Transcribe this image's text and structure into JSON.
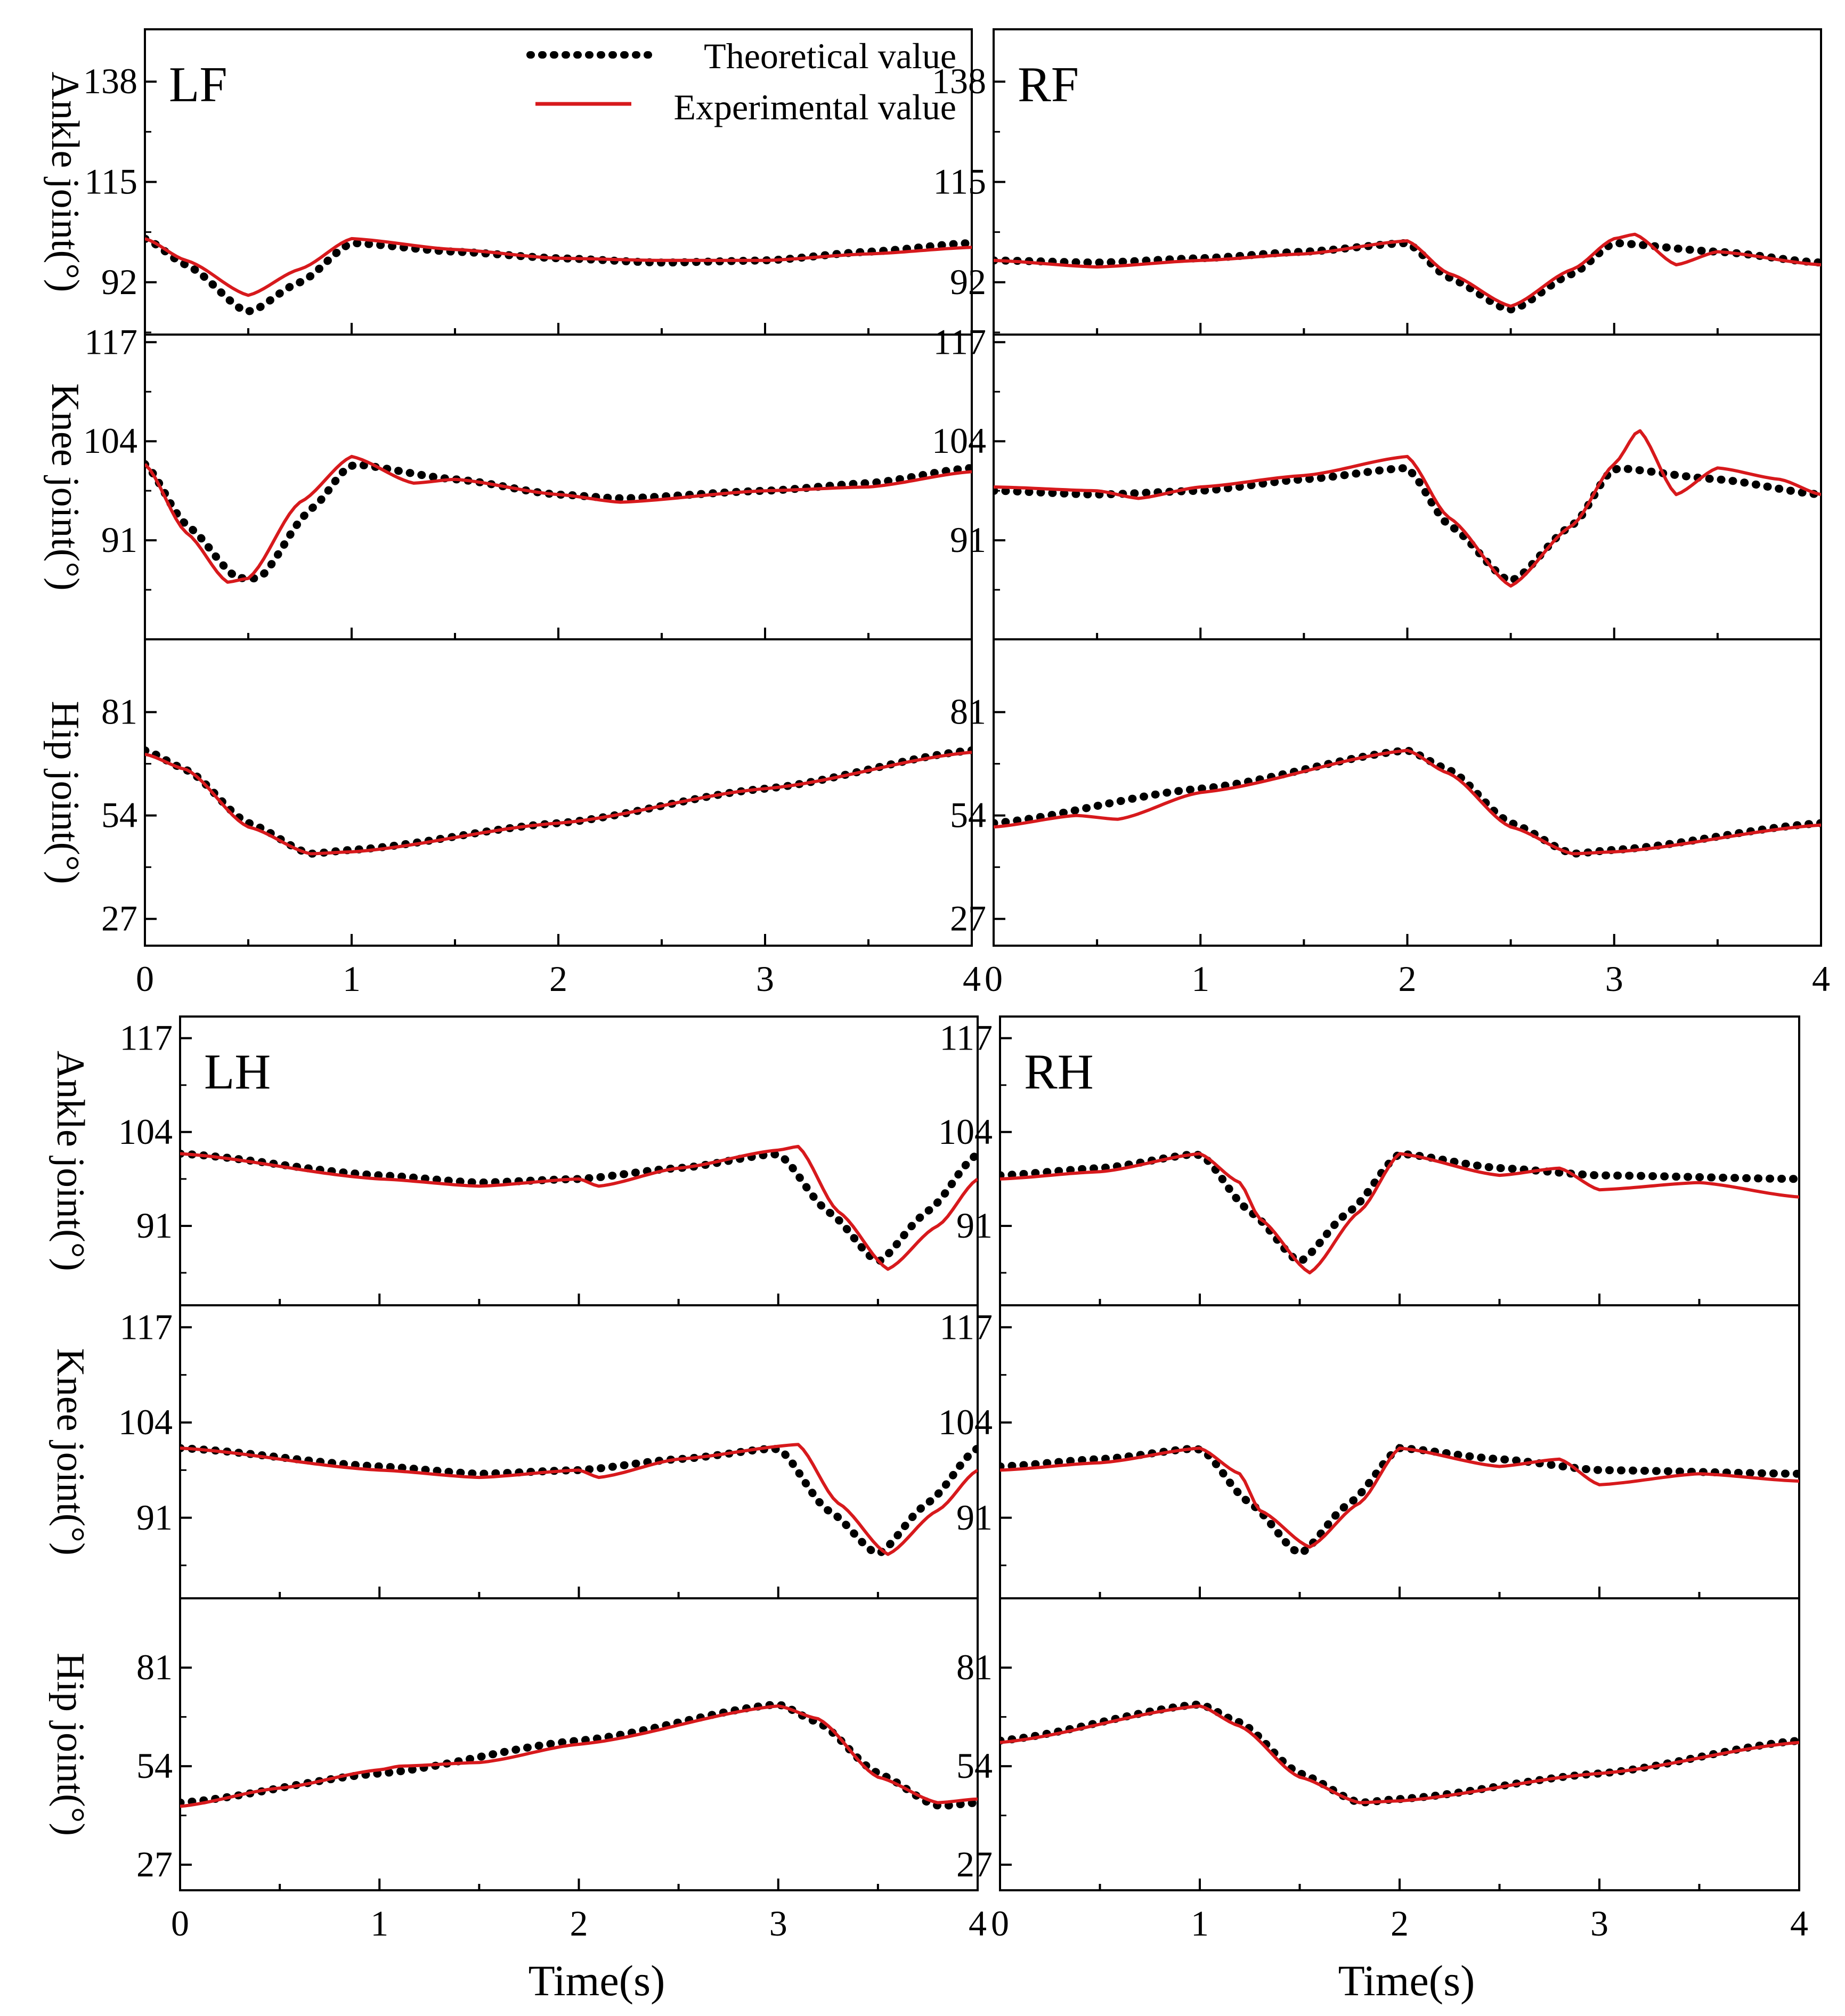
{
  "figure": {
    "theoretical_color": "#000000",
    "experimental_color": "#d7191c",
    "legend": {
      "theoretical": "Theoretical value",
      "experimental": "Experimental value"
    },
    "xlabel": "Time(s)"
  },
  "chart_data": [
    {
      "type": "line",
      "panel": "LF",
      "row": "ankle",
      "title": "LF",
      "ylabel": "Ankle joint(°)",
      "yticks": [
        92,
        115,
        138
      ],
      "ylim": [
        80,
        150
      ],
      "xlim": [
        0,
        4
      ],
      "xticks": [
        0,
        1,
        2,
        3,
        4
      ],
      "series": [
        {
          "name": "Theoretical value",
          "x": [
            0,
            0.2,
            0.5,
            0.75,
            1.0,
            1.5,
            2.0,
            2.5,
            3.0,
            3.5,
            4.0
          ],
          "values": [
            102,
            96,
            85,
            92,
            101,
            99,
            97.5,
            96.5,
            97,
            99,
            101
          ]
        },
        {
          "name": "Experimental value",
          "x": [
            0,
            0.2,
            0.5,
            0.75,
            1.0,
            1.5,
            2.0,
            2.5,
            3.0,
            3.5,
            4.0
          ],
          "values": [
            102,
            97,
            89,
            95,
            102,
            99.5,
            97.5,
            97,
            97,
            98.5,
            100
          ]
        }
      ]
    },
    {
      "type": "line",
      "panel": "LF",
      "row": "knee",
      "ylabel": "Knee joint(°)",
      "yticks": [
        91,
        104,
        117
      ],
      "ylim": [
        78,
        118
      ],
      "xlim": [
        0,
        4
      ],
      "xticks": [
        0,
        1,
        2,
        3,
        4
      ],
      "series": [
        {
          "name": "Theoretical value",
          "x": [
            0,
            0.2,
            0.45,
            0.55,
            0.8,
            1.0,
            1.5,
            2.0,
            2.3,
            3.0,
            3.5,
            4.0
          ],
          "values": [
            101,
            93,
            86,
            86,
            95,
            101,
            99,
            97,
            96.5,
            97.5,
            98.5,
            100.5
          ]
        },
        {
          "name": "Experimental value",
          "x": [
            0,
            0.2,
            0.4,
            0.5,
            0.75,
            1.0,
            1.3,
            1.5,
            2.0,
            2.3,
            3.0,
            3.5,
            4.0
          ],
          "values": [
            101,
            92,
            85.5,
            86,
            96,
            102,
            98.5,
            99,
            97,
            96,
            97.5,
            98,
            100
          ]
        }
      ]
    },
    {
      "type": "line",
      "panel": "LF",
      "row": "hip",
      "ylabel": "Hip joint(°)",
      "yticks": [
        27,
        54,
        81
      ],
      "ylim": [
        20,
        100
      ],
      "xlim": [
        0,
        4
      ],
      "xticks": [
        0,
        1,
        2,
        3,
        4
      ],
      "series": [
        {
          "name": "Theoretical value",
          "x": [
            0,
            0.2,
            0.5,
            0.8,
            1.0,
            2.0,
            3.0,
            4.0
          ],
          "values": [
            71,
            66,
            52,
            44,
            45,
            52,
            61,
            71
          ]
        },
        {
          "name": "Experimental value",
          "x": [
            0,
            0.2,
            0.5,
            0.8,
            1.0,
            2.0,
            3.0,
            4.0
          ],
          "values": [
            70,
            66,
            51,
            44,
            44.5,
            52,
            61,
            70.5
          ]
        }
      ]
    },
    {
      "type": "line",
      "panel": "RF",
      "row": "ankle",
      "title": "RF",
      "ylabel": "",
      "yticks": [
        92,
        115,
        138
      ],
      "ylim": [
        80,
        150
      ],
      "xlim": [
        0,
        4
      ],
      "xticks": [
        0,
        1,
        2,
        3,
        4
      ],
      "series": [
        {
          "name": "Theoretical value",
          "x": [
            0,
            0.5,
            1.0,
            1.5,
            2.0,
            2.2,
            2.5,
            2.8,
            3.0,
            3.5,
            4.0
          ],
          "values": [
            97,
            96.5,
            97.5,
            99,
            101,
            93,
            85.5,
            94,
            101,
            99,
            96.5
          ]
        },
        {
          "name": "Experimental value",
          "x": [
            0,
            0.5,
            1.0,
            1.5,
            2.0,
            2.2,
            2.5,
            2.8,
            3.0,
            3.1,
            3.3,
            3.5,
            4.0
          ],
          "values": [
            97,
            95.5,
            97,
            98.5,
            101.5,
            94,
            86.5,
            95,
            102,
            103,
            96,
            99,
            96
          ]
        }
      ]
    },
    {
      "type": "line",
      "panel": "RF",
      "row": "knee",
      "ylabel": "",
      "yticks": [
        91,
        104,
        117
      ],
      "ylim": [
        78,
        118
      ],
      "xlim": [
        0,
        4
      ],
      "xticks": [
        0,
        1,
        2,
        3,
        4
      ],
      "series": [
        {
          "name": "Theoretical value",
          "x": [
            0,
            0.5,
            1.0,
            1.5,
            2.0,
            2.2,
            2.5,
            2.8,
            3.0,
            3.5,
            4.0
          ],
          "values": [
            97.5,
            97,
            97.5,
            99,
            100.5,
            93,
            85.5,
            93,
            100.5,
            99,
            97
          ]
        },
        {
          "name": "Experimental value",
          "x": [
            0,
            0.5,
            0.7,
            1.0,
            1.5,
            2.0,
            2.2,
            2.5,
            2.8,
            3.0,
            3.12,
            3.3,
            3.5,
            3.8,
            4.0
          ],
          "values": [
            98,
            97.5,
            96.5,
            98,
            99.5,
            102,
            94,
            85,
            93,
            101,
            105.5,
            97,
            100.5,
            99,
            97
          ]
        }
      ]
    },
    {
      "type": "line",
      "panel": "RF",
      "row": "hip",
      "ylabel": "",
      "yticks": [
        27,
        54,
        81
      ],
      "ylim": [
        20,
        100
      ],
      "xlim": [
        0,
        4
      ],
      "xticks": [
        0,
        1,
        2,
        3,
        4
      ],
      "series": [
        {
          "name": "Theoretical value",
          "x": [
            0,
            1.0,
            2.0,
            2.2,
            2.5,
            2.8,
            3.0,
            4.0
          ],
          "values": [
            52,
            61,
            71,
            66,
            52,
            44,
            45,
            52
          ]
        },
        {
          "name": "Experimental value",
          "x": [
            0,
            0.4,
            0.6,
            1.0,
            2.0,
            2.2,
            2.5,
            2.8,
            3.0,
            4.0
          ],
          "values": [
            51,
            54,
            53,
            60,
            71,
            65,
            51,
            44,
            44.5,
            51.5
          ]
        }
      ]
    },
    {
      "type": "line",
      "panel": "LH",
      "row": "ankle",
      "title": "LH",
      "ylabel": "Ankle joint(°)",
      "yticks": [
        91,
        104,
        117
      ],
      "ylim": [
        80,
        120
      ],
      "xlim": [
        0,
        4
      ],
      "xticks": [
        0,
        1,
        2,
        3,
        4
      ],
      "series": [
        {
          "name": "Theoretical value",
          "x": [
            0,
            1.0,
            1.5,
            2.0,
            2.5,
            3.0,
            3.25,
            3.5,
            3.75,
            4.0
          ],
          "values": [
            101,
            98,
            97,
            97.5,
            99,
            101,
            93,
            86,
            93,
            101
          ]
        },
        {
          "name": "Experimental value",
          "x": [
            0,
            1.0,
            1.5,
            2.0,
            2.1,
            2.5,
            3.0,
            3.1,
            3.3,
            3.55,
            3.8,
            4.0
          ],
          "values": [
            101,
            97.5,
            96.5,
            97.5,
            96.5,
            99,
            101.5,
            102,
            93,
            85,
            91,
            97.5
          ]
        }
      ]
    },
    {
      "type": "line",
      "panel": "LH",
      "row": "knee",
      "ylabel": "Knee joint(°)",
      "yticks": [
        91,
        104,
        117
      ],
      "ylim": [
        80,
        120
      ],
      "xlim": [
        0,
        4
      ],
      "xticks": [
        0,
        1,
        2,
        3,
        4
      ],
      "series": [
        {
          "name": "Theoretical value",
          "x": [
            0,
            1.0,
            1.5,
            2.0,
            2.5,
            3.0,
            3.25,
            3.5,
            3.75,
            4.0
          ],
          "values": [
            100.5,
            98,
            97,
            97.5,
            99,
            100.5,
            92,
            86,
            93,
            100.5
          ]
        },
        {
          "name": "Experimental value",
          "x": [
            0,
            1.0,
            1.5,
            2.0,
            2.1,
            2.5,
            3.1,
            3.3,
            3.55,
            3.8,
            4.0
          ],
          "values": [
            100.5,
            97.5,
            96.5,
            97.5,
            96.5,
            99,
            101,
            93,
            86,
            92,
            97.5
          ]
        }
      ]
    },
    {
      "type": "line",
      "panel": "LH",
      "row": "hip",
      "ylabel": "Hip joint(°)",
      "yticks": [
        27,
        54,
        81
      ],
      "ylim": [
        20,
        100
      ],
      "xlim": [
        0,
        4
      ],
      "xticks": [
        0,
        1,
        2,
        3,
        4
      ],
      "series": [
        {
          "name": "Theoretical value",
          "x": [
            0,
            1.0,
            2.0,
            3.0,
            3.2,
            3.5,
            3.8,
            4.0
          ],
          "values": [
            44,
            52,
            61,
            71,
            66,
            52,
            43,
            44
          ]
        },
        {
          "name": "Experimental value",
          "x": [
            0,
            0.5,
            1.0,
            1.1,
            1.5,
            2.0,
            3.0,
            3.2,
            3.5,
            3.8,
            4.0
          ],
          "values": [
            43,
            48,
            53,
            54,
            55,
            60,
            70.5,
            67,
            51,
            44,
            45
          ]
        }
      ]
    },
    {
      "type": "line",
      "panel": "RH",
      "row": "ankle",
      "title": "RH",
      "ylabel": "",
      "yticks": [
        91,
        104,
        117
      ],
      "ylim": [
        80,
        120
      ],
      "xlim": [
        0,
        4
      ],
      "xticks": [
        0,
        1,
        2,
        3,
        4
      ],
      "series": [
        {
          "name": "Theoretical value",
          "x": [
            0,
            0.5,
            1.0,
            1.25,
            1.5,
            1.75,
            2.0,
            2.5,
            3.0,
            4.0
          ],
          "values": [
            98,
            99,
            101,
            93,
            86,
            93,
            101,
            99,
            98,
            97.5
          ]
        },
        {
          "name": "Experimental value",
          "x": [
            0,
            0.5,
            1.0,
            1.2,
            1.3,
            1.55,
            1.8,
            2.0,
            2.5,
            2.8,
            3.0,
            3.5,
            4.0
          ],
          "values": [
            97.5,
            98.5,
            101,
            97,
            92,
            84.5,
            93,
            101,
            98,
            99,
            96,
            97,
            95
          ]
        }
      ]
    },
    {
      "type": "line",
      "panel": "RH",
      "row": "knee",
      "ylabel": "",
      "yticks": [
        91,
        104,
        117
      ],
      "ylim": [
        80,
        120
      ],
      "xlim": [
        0,
        4
      ],
      "xticks": [
        0,
        1,
        2,
        3,
        4
      ],
      "series": [
        {
          "name": "Theoretical value",
          "x": [
            0,
            0.5,
            1.0,
            1.25,
            1.5,
            1.75,
            2.0,
            2.5,
            3.0,
            4.0
          ],
          "values": [
            98,
            99,
            100.5,
            93,
            86,
            93,
            100.5,
            99,
            97.5,
            97
          ]
        },
        {
          "name": "Experimental value",
          "x": [
            0,
            0.5,
            1.0,
            1.2,
            1.3,
            1.55,
            1.8,
            2.0,
            2.5,
            2.8,
            3.0,
            3.5,
            4.0
          ],
          "values": [
            97.5,
            98.5,
            100.5,
            97,
            92,
            87,
            93,
            100.5,
            98,
            99,
            95.5,
            97,
            96
          ]
        }
      ]
    },
    {
      "type": "line",
      "panel": "RH",
      "row": "hip",
      "ylabel": "",
      "yticks": [
        27,
        54,
        81
      ],
      "ylim": [
        20,
        100
      ],
      "xlim": [
        0,
        4
      ],
      "xticks": [
        0,
        1,
        2,
        3,
        4
      ],
      "series": [
        {
          "name": "Theoretical value",
          "x": [
            0,
            1.0,
            1.2,
            1.5,
            1.8,
            2.0,
            3.0,
            4.0
          ],
          "values": [
            61,
            71,
            66,
            52,
            44,
            45,
            52,
            61
          ]
        },
        {
          "name": "Experimental value",
          "x": [
            0,
            1.0,
            1.2,
            1.5,
            1.8,
            2.0,
            3.0,
            4.0
          ],
          "values": [
            60.5,
            70.5,
            65,
            51,
            44,
            44.5,
            52,
            60.5
          ]
        }
      ]
    }
  ]
}
